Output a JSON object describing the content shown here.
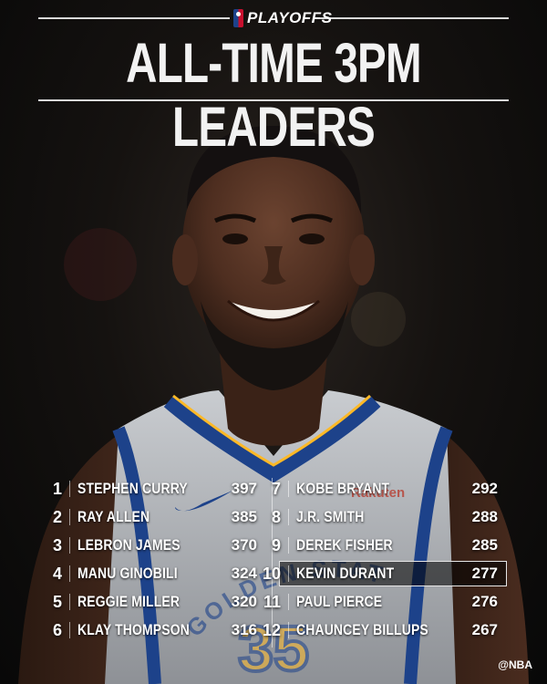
{
  "header": {
    "league_badge": "PLAYOFFS",
    "title": "ALL-TIME 3PM LEADERS"
  },
  "leaders": [
    {
      "rank": "1",
      "name": "STEPHEN CURRY",
      "value": "397"
    },
    {
      "rank": "2",
      "name": "RAY ALLEN",
      "value": "385"
    },
    {
      "rank": "3",
      "name": "LEBRON JAMES",
      "value": "370"
    },
    {
      "rank": "4",
      "name": "MANU GINOBILI",
      "value": "324"
    },
    {
      "rank": "5",
      "name": "REGGIE MILLER",
      "value": "320"
    },
    {
      "rank": "6",
      "name": "KLAY THOMPSON",
      "value": "316"
    },
    {
      "rank": "7",
      "name": "KOBE BRYANT",
      "value": "292"
    },
    {
      "rank": "8",
      "name": "J.R. SMITH",
      "value": "288"
    },
    {
      "rank": "9",
      "name": "DEREK FISHER",
      "value": "285"
    },
    {
      "rank": "10",
      "name": "KEVIN DURANT",
      "value": "277",
      "highlighted": true
    },
    {
      "rank": "11",
      "name": "PAUL PIERCE",
      "value": "276"
    },
    {
      "rank": "12",
      "name": "CHAUNCEY BILLUPS",
      "value": "267"
    }
  ],
  "jersey": {
    "number": "35",
    "wordmark": "GOLDEN STATE",
    "sponsor": "Rakuten"
  },
  "credit": "@NBA",
  "colors": {
    "jersey_blue": "#1d428a",
    "jersey_gold": "#fdb927",
    "jersey_grey": "#b9bcc0",
    "text": "#ffffff"
  }
}
